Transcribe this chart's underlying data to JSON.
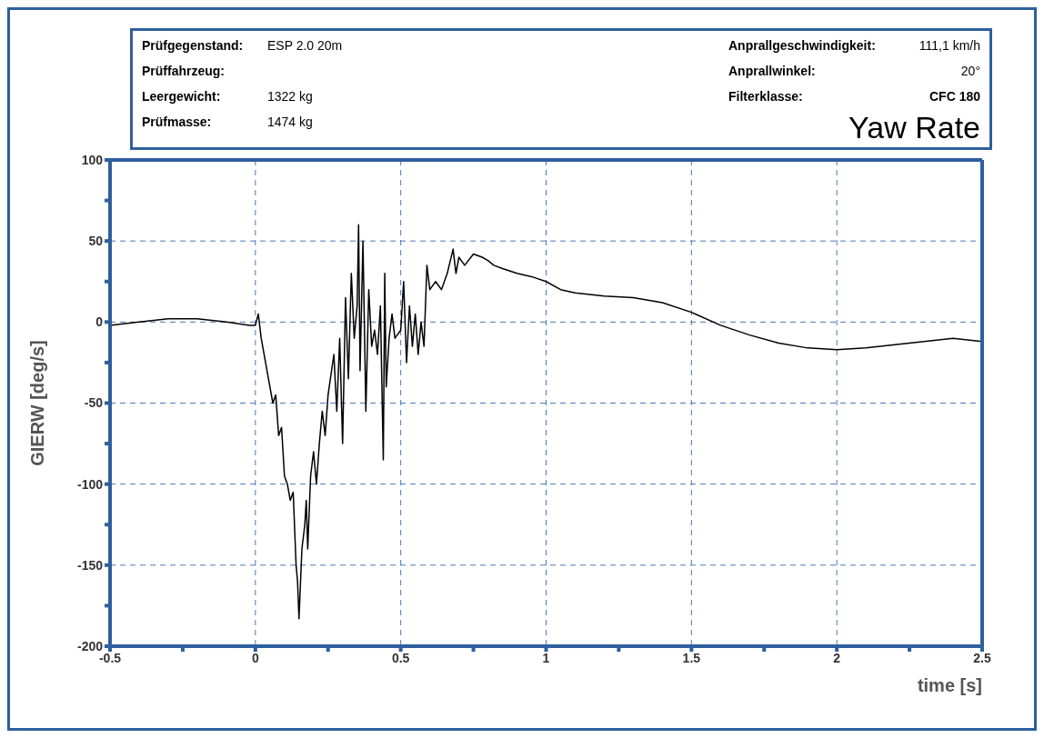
{
  "chart_data": {
    "type": "line",
    "title": "Yaw Rate",
    "xlabel": "time [s]",
    "ylabel": "GIERW [deg/s]",
    "annotations": [
      "Prüfgegenstand:",
      "ESP 2.0 20m",
      "Prüffahrzeug:",
      "Leergewicht:",
      "1322 kg",
      "Prüfmasse:",
      "1474 kg",
      "Anprallgeschwindigkeit:",
      "111,1 km/h",
      "Anprallwinkel:",
      "20°",
      "Filterklasse:",
      "CFC 180"
    ],
    "x": [
      -0.5,
      -0.4,
      -0.3,
      -0.2,
      -0.1,
      -0.02,
      0.0,
      0.01,
      0.02,
      0.04,
      0.06,
      0.07,
      0.08,
      0.09,
      0.1,
      0.11,
      0.12,
      0.13,
      0.14,
      0.145,
      0.15,
      0.16,
      0.17,
      0.175,
      0.18,
      0.19,
      0.2,
      0.21,
      0.22,
      0.23,
      0.24,
      0.25,
      0.27,
      0.28,
      0.29,
      0.3,
      0.31,
      0.32,
      0.33,
      0.34,
      0.35,
      0.355,
      0.36,
      0.37,
      0.38,
      0.39,
      0.4,
      0.41,
      0.42,
      0.43,
      0.44,
      0.445,
      0.45,
      0.46,
      0.47,
      0.48,
      0.5,
      0.51,
      0.52,
      0.53,
      0.54,
      0.55,
      0.56,
      0.57,
      0.58,
      0.59,
      0.6,
      0.62,
      0.64,
      0.66,
      0.68,
      0.69,
      0.7,
      0.72,
      0.75,
      0.78,
      0.8,
      0.82,
      0.85,
      0.9,
      0.95,
      1.0,
      1.05,
      1.1,
      1.2,
      1.3,
      1.4,
      1.5,
      1.6,
      1.7,
      1.8,
      1.9,
      2.0,
      2.1,
      2.2,
      2.3,
      2.4,
      2.5
    ],
    "series": [
      {
        "color": "#000000",
        "values": [
          -2,
          0,
          2,
          2,
          0,
          -2,
          -2,
          5,
          -10,
          -30,
          -50,
          -45,
          -70,
          -65,
          -95,
          -100,
          -110,
          -105,
          -150,
          -160,
          -183,
          -140,
          -125,
          -110,
          -140,
          -95,
          -80,
          -100,
          -75,
          -55,
          -70,
          -45,
          -20,
          -55,
          -10,
          -75,
          15,
          -35,
          30,
          -10,
          10,
          60,
          -30,
          50,
          -55,
          20,
          -15,
          -5,
          -20,
          10,
          -85,
          30,
          -40,
          -10,
          5,
          -10,
          -5,
          25,
          -25,
          10,
          -15,
          5,
          -20,
          0,
          -15,
          35,
          20,
          25,
          20,
          30,
          45,
          30,
          40,
          35,
          42,
          40,
          38,
          35,
          33,
          30,
          28,
          25,
          20,
          18,
          16,
          15,
          12,
          6,
          -2,
          -8,
          -13,
          -16,
          -17,
          -16,
          -14,
          -12,
          -10,
          -12
        ]
      }
    ],
    "xlim": [
      -0.5,
      2.5
    ],
    "xticks": [
      -0.5,
      {
        "value": -0.25,
        "label": null
      },
      0,
      {
        "value": 0.25,
        "label": null
      },
      0.5,
      {
        "value": 0.75,
        "label": null
      },
      1,
      {
        "value": 1.25,
        "label": null
      },
      1.5,
      {
        "value": 1.75,
        "label": null
      },
      2,
      {
        "value": 2.25,
        "label": null
      },
      2.5
    ],
    "ylim": [
      -200,
      100
    ],
    "yticks": [
      -200,
      {
        "value": -175,
        "label": null
      },
      -150,
      {
        "value": -125,
        "label": null
      },
      -100,
      {
        "value": -75,
        "label": null
      },
      -50,
      {
        "value": -25,
        "label": null
      },
      0,
      {
        "value": 25,
        "label": null
      },
      50,
      {
        "value": 75,
        "label": null
      },
      100
    ],
    "grid": true,
    "marker": "none",
    "line_style": "solid"
  }
}
